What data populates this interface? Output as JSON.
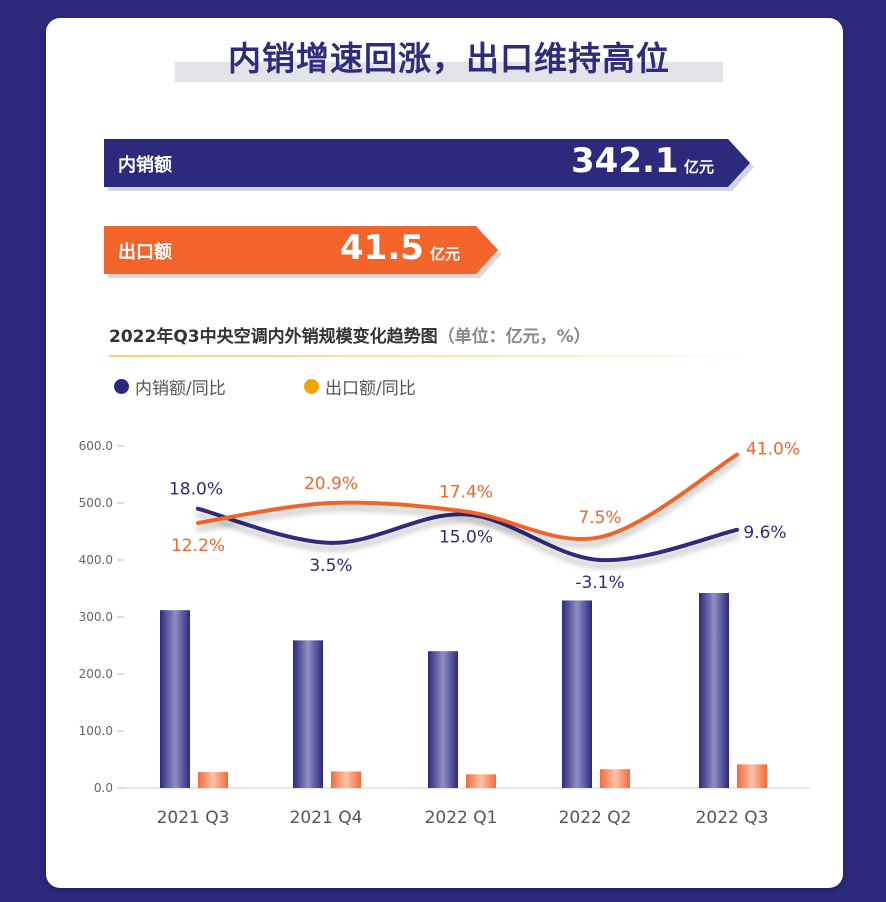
{
  "title": "内销增速回涨，出口维持高位",
  "kpis": {
    "domestic": {
      "label": "内销额",
      "value": "342.1",
      "unit": "亿元",
      "color": "#2b2a7c"
    },
    "export": {
      "label": "出口额",
      "value": "41.5",
      "unit": "亿元",
      "color": "#f2642a"
    }
  },
  "chart_title": "2022年Q3中央空调内外销规模变化趋势图",
  "chart_unit": "（单位：亿元，%）",
  "legend": [
    {
      "label": "内销额/同比",
      "color": "#2b2a7c"
    },
    {
      "label": "出口额/同比",
      "color": "#f5a300"
    }
  ],
  "chart_data": {
    "type": "bar",
    "categories": [
      "2021 Q3",
      "2021 Q4",
      "2022 Q1",
      "2022 Q2",
      "2022 Q3"
    ],
    "ylim": [
      0,
      600
    ],
    "yticks": [
      "0.0",
      "100.0",
      "200.0",
      "300.0",
      "400.0",
      "500.0",
      "600.0"
    ],
    "series": [
      {
        "name": "内销额",
        "values": [
          312,
          259,
          240,
          329,
          342.1
        ],
        "color": "#2b2a7c"
      },
      {
        "name": "出口额",
        "values": [
          28,
          29,
          24,
          33,
          41.5
        ],
        "color": "#f47d4f"
      }
    ],
    "growth_lines": [
      {
        "name": "内销额/同比",
        "color": "#2e2b7d",
        "labels": [
          "18.0%",
          "3.5%",
          "15.0%",
          "-3.1%",
          "9.6%"
        ],
        "line_y": [
          490,
          430,
          480,
          400,
          453
        ]
      },
      {
        "name": "出口额/同比",
        "color": "#f2642a",
        "labels": [
          "12.2%",
          "20.9%",
          "17.4%",
          "7.5%",
          "41.0%"
        ],
        "line_y": [
          465,
          500,
          485,
          440,
          585
        ]
      }
    ],
    "grid": false
  }
}
